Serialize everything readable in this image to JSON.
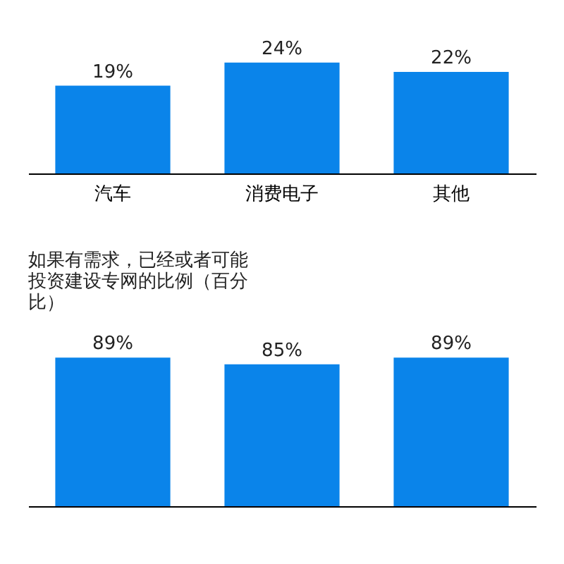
{
  "chart_data": [
    {
      "type": "bar",
      "categories": [
        "汽车",
        "消费电子",
        "其他"
      ],
      "values": [
        19,
        24,
        22
      ],
      "value_labels": [
        "19%",
        "24%",
        "22%"
      ],
      "color": "#0a84ea"
    },
    {
      "type": "bar",
      "title": "如果有需求，已经或者可能投资建设专网的比例（百分比）",
      "categories": [
        null,
        null,
        null
      ],
      "values": [
        89,
        85,
        89
      ],
      "value_labels": [
        "89%",
        "85%",
        "89%"
      ],
      "color": "#0a84ea"
    }
  ]
}
